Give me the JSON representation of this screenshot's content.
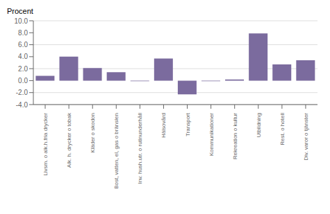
{
  "chart_data": {
    "type": "bar",
    "ylabel": "Procent",
    "categories": [
      "Livsm. o alk.h.fria drycker",
      "Alk. h. drycker o tobak",
      "Kläder o skodon",
      "Bost, vatten, el, gas o bränslen",
      "Inv. hush.utr. o rutinunderhåll",
      "Hälsovård",
      "Transport",
      "Kommunikationer",
      "Rekreation o kultur",
      "Utbildning",
      "Rest. o hotell",
      "Div. varor o tjänster"
    ],
    "values": [
      0.8,
      4.0,
      2.1,
      1.4,
      -0.1,
      3.7,
      -2.3,
      -0.1,
      0.2,
      7.9,
      2.7,
      3.4
    ],
    "color": "#7B6B9E",
    "ylim": [
      -4.0,
      10.0
    ],
    "yticks": [
      {
        "value": -4.0,
        "label": "-4.0"
      },
      {
        "value": -2.0,
        "label": "-2.0"
      },
      {
        "value": 0.0,
        "label": "0.0"
      },
      {
        "value": 2.0,
        "label": "2.0"
      },
      {
        "value": 4.0,
        "label": "4.0"
      },
      {
        "value": 6.0,
        "label": "6.0"
      },
      {
        "value": 8.0,
        "label": "8.0"
      },
      {
        "value": 10.0,
        "label": "10.0"
      }
    ],
    "grid": true
  }
}
